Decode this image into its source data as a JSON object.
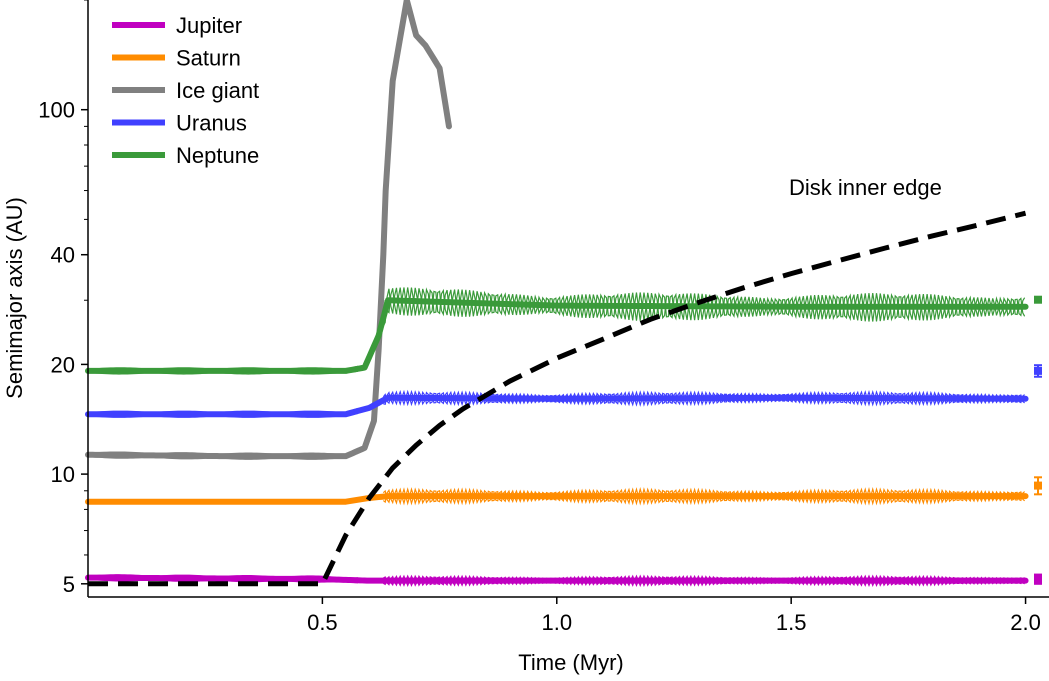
{
  "chart_data": {
    "type": "line",
    "title": "",
    "xlabel": "Time (Myr)",
    "ylabel": "Semimajor axis (AU)",
    "xlim": [
      0.0,
      2.05
    ],
    "ylim": [
      4.6,
      200
    ],
    "yscale": "log",
    "x_ticks": [
      {
        "value": 0.5,
        "label": "0.5"
      },
      {
        "value": 1.0,
        "label": "1.0"
      },
      {
        "value": 1.5,
        "label": "1.5"
      },
      {
        "value": 2.0,
        "label": "2.0"
      }
    ],
    "y_ticks": [
      {
        "value": 5,
        "label": "5"
      },
      {
        "value": 10,
        "label": "10"
      },
      {
        "value": 20,
        "label": "20"
      },
      {
        "value": 40,
        "label": "40"
      },
      {
        "value": 100,
        "label": "100"
      }
    ],
    "legend_position": "top-left",
    "annotation": "Disk inner edge",
    "series": [
      {
        "name": "Jupiter",
        "color": "#c000c0",
        "x": [
          0.0,
          0.5,
          0.6,
          0.65,
          1.0,
          1.5,
          2.0
        ],
        "y": [
          5.2,
          5.15,
          5.1,
          5.1,
          5.1,
          5.1,
          5.1
        ],
        "spread_before": 0.02,
        "spread_after": 0.03,
        "final": {
          "value": 5.15,
          "err": 0.15
        }
      },
      {
        "name": "Saturn",
        "color": "#ff8c00",
        "x": [
          0.0,
          0.3,
          0.55,
          0.6,
          0.64,
          1.0,
          1.5,
          2.0
        ],
        "y": [
          8.4,
          8.4,
          8.4,
          8.6,
          8.7,
          8.7,
          8.7,
          8.7
        ],
        "spread_before": 0.01,
        "spread_after": 0.045,
        "final": {
          "value": 9.3,
          "err": 0.5
        }
      },
      {
        "name": "Ice giant",
        "color": "#808080",
        "x": [
          0.0,
          0.3,
          0.55,
          0.59,
          0.61,
          0.62,
          0.63,
          0.635,
          0.65,
          0.68,
          0.7,
          0.72,
          0.75,
          0.77
        ],
        "y": [
          11.3,
          11.2,
          11.2,
          11.8,
          14,
          22,
          40,
          60,
          120,
          200,
          160,
          150,
          130,
          90
        ],
        "spread_before": 0.02
      },
      {
        "name": "Uranus",
        "color": "#4040ff",
        "x": [
          0.0,
          0.3,
          0.55,
          0.6,
          0.64,
          1.0,
          1.5,
          2.0
        ],
        "y": [
          14.6,
          14.6,
          14.6,
          15.2,
          16.2,
          16.1,
          16.2,
          16.1
        ],
        "spread_before": 0.02,
        "spread_after": 0.04,
        "final": {
          "value": 19.2,
          "err": 0.7
        }
      },
      {
        "name": "Neptune",
        "color": "#3a9a3a",
        "x": [
          0.0,
          0.3,
          0.55,
          0.59,
          0.62,
          0.64,
          1.0,
          1.5,
          2.0
        ],
        "y": [
          19.2,
          19.2,
          19.2,
          19.6,
          24,
          30,
          29,
          28.8,
          28.8
        ],
        "spread_before": 0.02,
        "spread_after": 0.09,
        "final": {
          "value": 30.1,
          "err": 0.3
        }
      },
      {
        "name": "Disk inner edge",
        "color": "#000000",
        "dashed": true,
        "x": [
          0.0,
          0.5,
          0.55,
          0.6,
          0.65,
          0.7,
          0.75,
          0.8,
          0.9,
          1.0,
          1.1,
          1.2,
          1.3,
          1.4,
          1.5,
          1.6,
          1.7,
          1.8,
          1.9,
          2.0
        ],
        "y": [
          5.0,
          5.0,
          6.8,
          8.6,
          10.4,
          12.0,
          13.6,
          15.1,
          18.0,
          20.8,
          23.5,
          26.6,
          29.5,
          32.5,
          35.5,
          38.5,
          41.7,
          45.0,
          48.3,
          52.0
        ]
      }
    ]
  }
}
